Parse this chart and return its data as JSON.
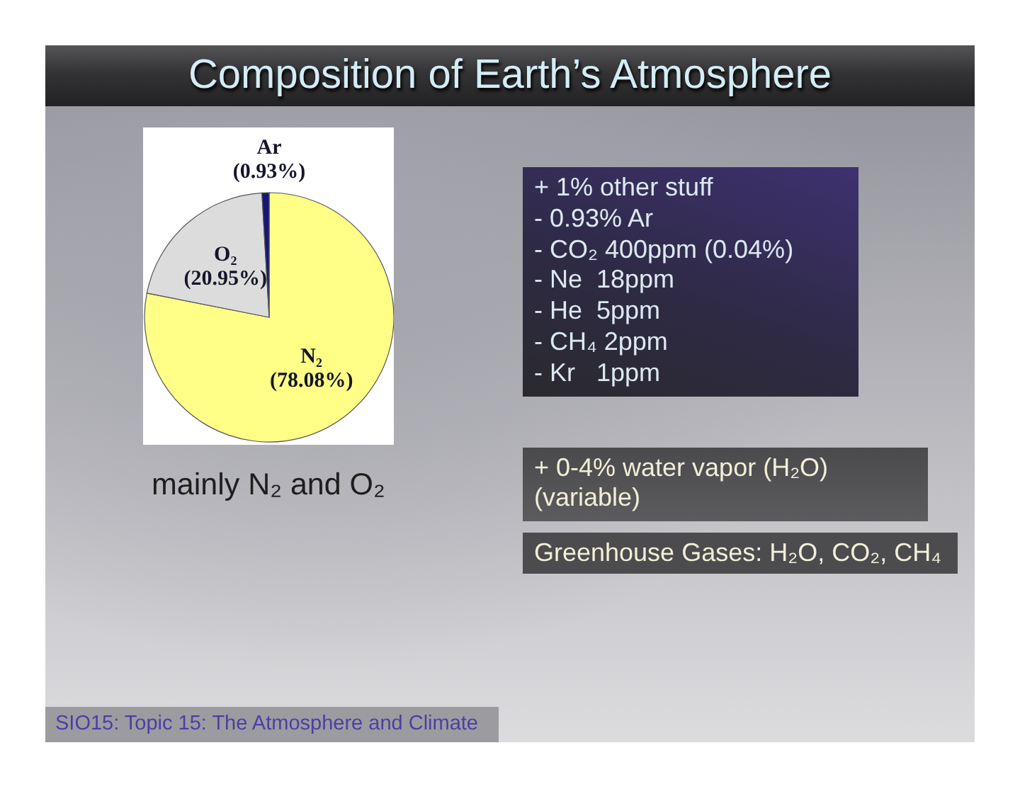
{
  "chart_data": {
    "type": "pie",
    "title": "Composition of Earth’s Atmosphere",
    "categories": [
      "N₂",
      "O₂",
      "Ar"
    ],
    "values": [
      78.08,
      20.95,
      0.93
    ],
    "colors": [
      "#ffff88",
      "#dcdcdc",
      "#16167a"
    ],
    "value_labels": [
      "(78.08%)",
      "(20.95%)",
      "(0.93%)"
    ],
    "annotations": [
      "+ 1% other stuff\n- 0.93% Ar\n- CO₂ 400ppm (0.04%)\n- Ne  18ppm\n- He  5ppm\n- CH₄ 2ppm\n- Kr   1ppm",
      "mainly N₂ and O₂",
      "+ 0-4% water vapor (H₂O) (variable)",
      "Greenhouse Gases: H₂O, CO₂, CH₄",
      "SIO15: Topic 15: The Atmosphere and Climate"
    ]
  }
}
